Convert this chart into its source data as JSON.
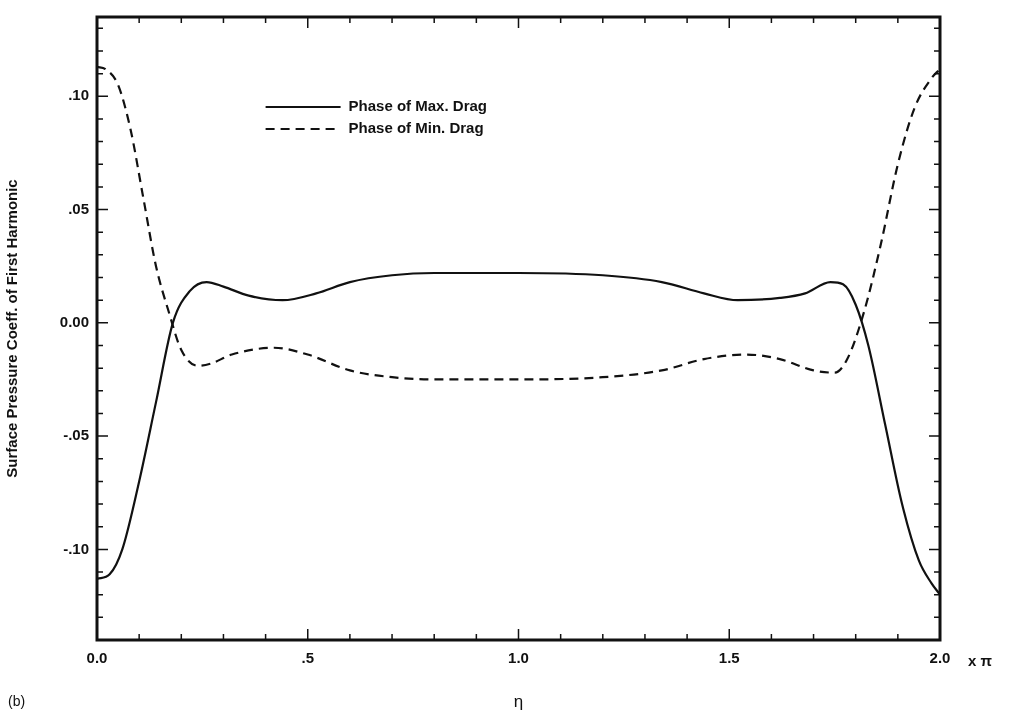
{
  "chart_data": {
    "type": "line",
    "xlabel": "η",
    "ylabel": "Surface Pressure Coeff. of First Harmonic",
    "xlim": [
      0,
      2
    ],
    "ylim": [
      -0.14,
      0.135
    ],
    "xticks": [
      {
        "value": 0,
        "label": "0.0"
      },
      {
        "value": 0.1,
        "label": null
      },
      {
        "value": 0.2,
        "label": null
      },
      {
        "value": 0.3,
        "label": null
      },
      {
        "value": 0.4,
        "label": null
      },
      {
        "value": 0.5,
        "label": ".5"
      },
      {
        "value": 0.6,
        "label": null
      },
      {
        "value": 0.7,
        "label": null
      },
      {
        "value": 0.8,
        "label": null
      },
      {
        "value": 0.9,
        "label": null
      },
      {
        "value": 1,
        "label": "1.0"
      },
      {
        "value": 1.1,
        "label": null
      },
      {
        "value": 1.2,
        "label": null
      },
      {
        "value": 1.3,
        "label": null
      },
      {
        "value": 1.4,
        "label": null
      },
      {
        "value": 1.5,
        "label": "1.5"
      },
      {
        "value": 1.6,
        "label": null
      },
      {
        "value": 1.7,
        "label": null
      },
      {
        "value": 1.8,
        "label": null
      },
      {
        "value": 1.9,
        "label": null
      },
      {
        "value": 2,
        "label": "2.0"
      }
    ],
    "yticks": [
      {
        "value": -0.13,
        "label": null
      },
      {
        "value": -0.12,
        "label": null
      },
      {
        "value": -0.11,
        "label": null
      },
      {
        "value": -0.1,
        "label": "-.10"
      },
      {
        "value": -0.09,
        "label": null
      },
      {
        "value": -0.08,
        "label": null
      },
      {
        "value": -0.07,
        "label": null
      },
      {
        "value": -0.06,
        "label": null
      },
      {
        "value": -0.05,
        "label": "-.05"
      },
      {
        "value": -0.04,
        "label": null
      },
      {
        "value": -0.03,
        "label": null
      },
      {
        "value": -0.02,
        "label": null
      },
      {
        "value": -0.01,
        "label": null
      },
      {
        "value": 0,
        "label": "0.00"
      },
      {
        "value": 0.01,
        "label": null
      },
      {
        "value": 0.02,
        "label": null
      },
      {
        "value": 0.03,
        "label": null
      },
      {
        "value": 0.04,
        "label": null
      },
      {
        "value": 0.05,
        "label": ".05"
      },
      {
        "value": 0.06,
        "label": null
      },
      {
        "value": 0.07,
        "label": null
      },
      {
        "value": 0.08,
        "label": null
      },
      {
        "value": 0.09,
        "label": null
      },
      {
        "value": 0.1,
        "label": ".10"
      },
      {
        "value": 0.11,
        "label": null
      },
      {
        "value": 0.12,
        "label": null
      },
      {
        "value": 0.13,
        "label": null
      }
    ],
    "grid": false,
    "legend": "top left",
    "marker": "none",
    "annotations": [
      "x π",
      "(b)"
    ],
    "series": [
      {
        "name": "Phase of Max. Drag",
        "color": "#111111",
        "line_style": "solid",
        "x": [
          0,
          0.03,
          0.06,
          0.1,
          0.14,
          0.18,
          0.22,
          0.26,
          0.3,
          0.36,
          0.44,
          0.52,
          0.6,
          0.7,
          0.8,
          1.0,
          1.2,
          1.34,
          1.44,
          1.52,
          1.62,
          1.68,
          1.74,
          1.77,
          1.8,
          1.83,
          1.87,
          1.91,
          1.95,
          1.98,
          2.0
        ],
        "values": [
          -0.113,
          -0.111,
          -0.1,
          -0.07,
          -0.035,
          0.0,
          0.014,
          0.018,
          0.016,
          0.012,
          0.01,
          0.013,
          0.018,
          0.021,
          0.022,
          0.022,
          0.021,
          0.018,
          0.013,
          0.01,
          0.011,
          0.013,
          0.018,
          0.017,
          0.008,
          -0.01,
          -0.045,
          -0.08,
          -0.105,
          -0.115,
          -0.12
        ]
      },
      {
        "name": "Phase of Min. Drag",
        "color": "#111111",
        "line_style": "dashed",
        "x": [
          0,
          0.02,
          0.05,
          0.08,
          0.11,
          0.14,
          0.17,
          0.2,
          0.24,
          0.27,
          0.32,
          0.42,
          0.5,
          0.6,
          0.7,
          0.8,
          1.0,
          1.2,
          1.34,
          1.44,
          1.54,
          1.62,
          1.7,
          1.75,
          1.78,
          1.82,
          1.86,
          1.9,
          1.94,
          1.98,
          2.0
        ],
        "values": [
          0.113,
          0.112,
          0.105,
          0.085,
          0.055,
          0.025,
          0.005,
          -0.012,
          -0.019,
          -0.018,
          -0.014,
          -0.011,
          -0.014,
          -0.021,
          -0.024,
          -0.025,
          -0.025,
          -0.024,
          -0.021,
          -0.016,
          -0.014,
          -0.016,
          -0.021,
          -0.022,
          -0.016,
          0.005,
          0.035,
          0.07,
          0.095,
          0.108,
          0.112
        ]
      }
    ]
  }
}
